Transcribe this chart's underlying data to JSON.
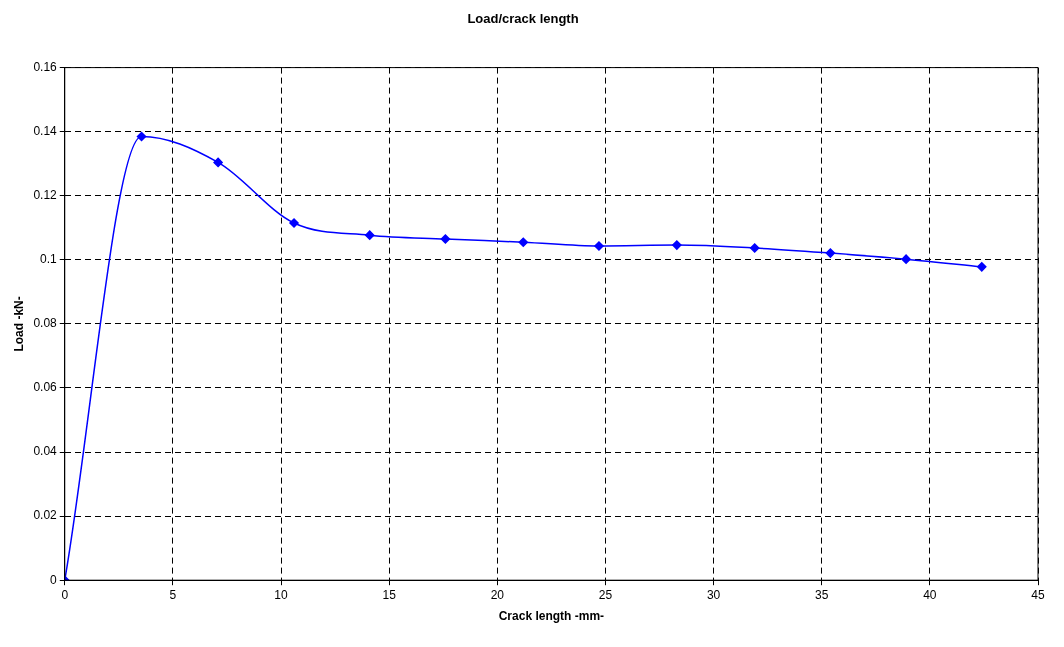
{
  "chart_data": {
    "type": "line",
    "title": "Load/crack length",
    "xlabel": "Crack length -mm-",
    "ylabel": "Load -kN-",
    "x": [
      0,
      3.55,
      7.09,
      10.6,
      14.1,
      17.6,
      21.2,
      24.7,
      28.3,
      31.9,
      35.4,
      38.9,
      42.4
    ],
    "series": [
      {
        "color": "#0000ff",
        "values": [
          0,
          0.1385,
          0.1304,
          0.1115,
          0.1077,
          0.1065,
          0.1055,
          0.1043,
          0.1046,
          0.1037,
          0.1021,
          0.1002,
          0.0978
        ]
      }
    ],
    "xlim": [
      0,
      45
    ],
    "xticks": [
      0,
      5,
      10,
      15,
      20,
      25,
      30,
      35,
      40,
      45
    ],
    "ylim": [
      0,
      0.16
    ],
    "yticks": [
      0,
      0.02,
      0.04,
      0.06,
      0.08,
      0.1,
      0.12,
      0.14,
      0.16
    ],
    "grid": true,
    "legend": false,
    "marker": "diamond",
    "line_style": "solid"
  }
}
